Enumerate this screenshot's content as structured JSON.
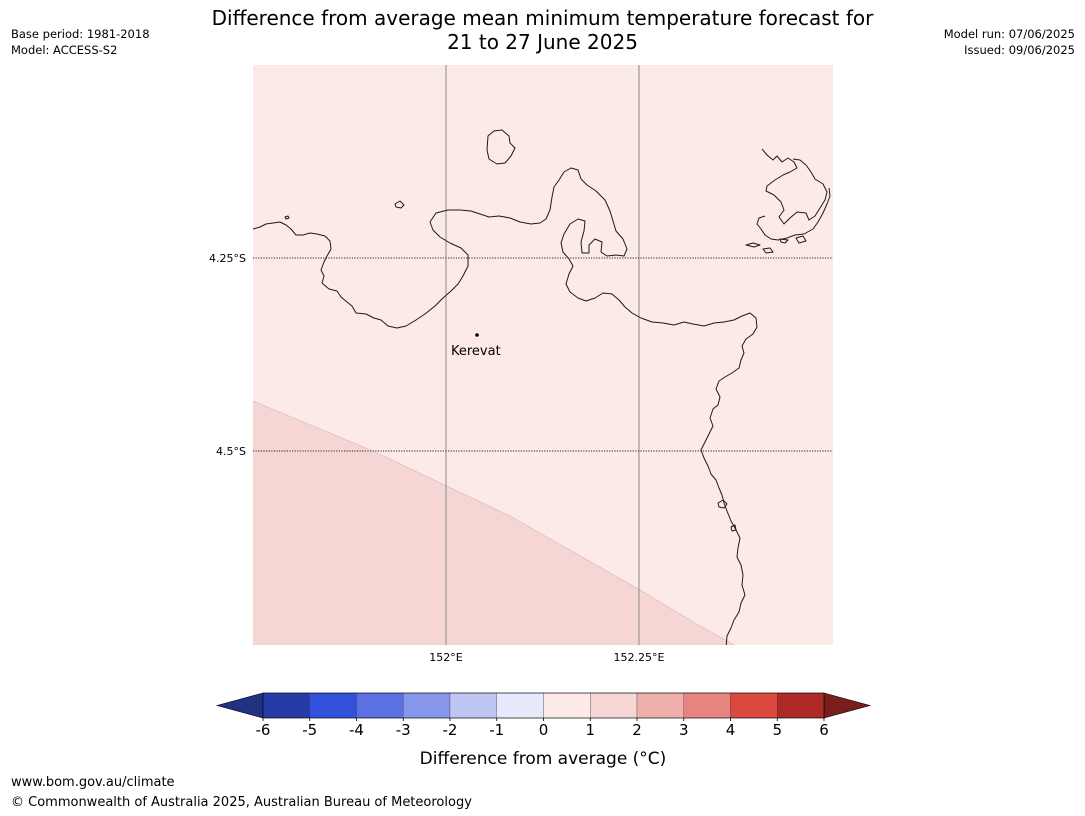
{
  "header": {
    "title_line1": "Difference from average mean minimum temperature forecast for",
    "title_line2": "21 to 27 June 2025",
    "base_period": "Base period: 1981-2018",
    "model": "Model: ACCESS-S2",
    "model_run": "Model run: 07/06/2025",
    "issued": "Issued: 09/06/2025"
  },
  "map": {
    "lat_labels": [
      "4.25°S",
      "4.5°S"
    ],
    "lon_labels": [
      "152°E",
      "152.25°E"
    ],
    "place": "Kerevat",
    "base_anomaly_color": "#fbeae8",
    "warm_anomaly_color": "#f5d6d4",
    "coast_color": "#1a1a1a"
  },
  "colorbar": {
    "label": "Difference from average (°C)",
    "ticks": [
      "-6",
      "-5",
      "-4",
      "-3",
      "-2",
      "-1",
      "0",
      "1",
      "2",
      "3",
      "4",
      "5",
      "6"
    ],
    "colors": [
      "#263ba8",
      "#3150dc",
      "#5b71e2",
      "#8797eb",
      "#bfc6f4",
      "#e8eafb",
      "#fbeae8",
      "#f5d6d4",
      "#efafab",
      "#e68480",
      "#dc473e",
      "#ae2a24"
    ],
    "under_color": "#213282",
    "over_color": "#7a1e1c"
  },
  "footer": {
    "url": "www.bom.gov.au/climate",
    "copyright": "© Commonwealth of Australia 2025, Australian Bureau of Meteorology"
  }
}
